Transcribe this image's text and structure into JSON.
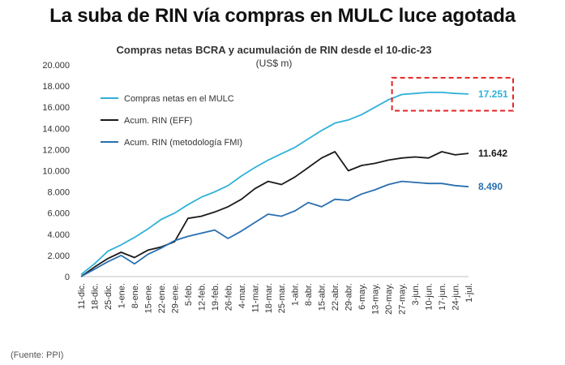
{
  "headline": "La suba de RIN vía compras en MULC luce agotada",
  "source": "(Fuente: PPI)",
  "colors": {
    "mulc": "#2fb1d8",
    "rin_eff": "#1a1a1a",
    "rin_fmi": "#2a6fb0",
    "highlight_box": "#e32424"
  },
  "chart_data": {
    "type": "line",
    "title": "Compras netas BCRA y acumulación de RIN desde el 10-dic-23",
    "subtitle": "(US$ m)",
    "xlabel": "",
    "ylabel": "",
    "ylim": [
      0,
      20000
    ],
    "yticks": [
      "0",
      "2.000",
      "4.000",
      "6.000",
      "8.000",
      "10.000",
      "12.000",
      "14.000",
      "16.000",
      "18.000",
      "20.000"
    ],
    "categories": [
      "11-dic.",
      "18-dic.",
      "25-dic.",
      "1-ene.",
      "8-ene.",
      "15-ene.",
      "22-ene.",
      "29-ene.",
      "5-feb.",
      "12-feb.",
      "19-feb.",
      "26-feb.",
      "4-mar.",
      "11-mar.",
      "18-mar.",
      "25-mar.",
      "1-abr.",
      "8-abr.",
      "15-abr.",
      "22-abr.",
      "29-abr.",
      "6-may.",
      "13-may.",
      "20-may.",
      "27-may.",
      "3-jun.",
      "10-jun.",
      "17-jun.",
      "24-jun.",
      "1-jul."
    ],
    "legend_position": "top-left",
    "grid": false,
    "series": [
      {
        "name": "Compras netas en el MULC",
        "end_label": "17.251",
        "values": [
          200,
          1200,
          2400,
          3000,
          3700,
          4500,
          5400,
          6000,
          6800,
          7500,
          8000,
          8600,
          9500,
          10300,
          11000,
          11600,
          12200,
          13000,
          13800,
          14500,
          14800,
          15300,
          16000,
          16700,
          17200,
          17300,
          17400,
          17400,
          17300,
          17251
        ]
      },
      {
        "name": "Acum. RIN (EFF)",
        "end_label": "11.642",
        "values": [
          0,
          900,
          1700,
          2300,
          1800,
          2500,
          2800,
          3300,
          5500,
          5700,
          6100,
          6600,
          7300,
          8300,
          9000,
          8700,
          9400,
          10300,
          11200,
          11800,
          10000,
          10500,
          10700,
          11000,
          11200,
          11300,
          11200,
          11800,
          11500,
          11642
        ]
      },
      {
        "name": "Acum. RIN (metodología FMI)",
        "end_label": "8.490",
        "values": [
          0,
          700,
          1400,
          2000,
          1200,
          2100,
          2700,
          3400,
          3800,
          4100,
          4400,
          3600,
          4300,
          5100,
          5900,
          5700,
          6200,
          7000,
          6600,
          7300,
          7200,
          7800,
          8200,
          8700,
          9000,
          8900,
          8800,
          8800,
          8600,
          8490
        ]
      }
    ],
    "annotations": [
      {
        "type": "dashed-box",
        "target_series": 0,
        "from_category": "27-may.",
        "to_category": "1-jul."
      }
    ]
  }
}
